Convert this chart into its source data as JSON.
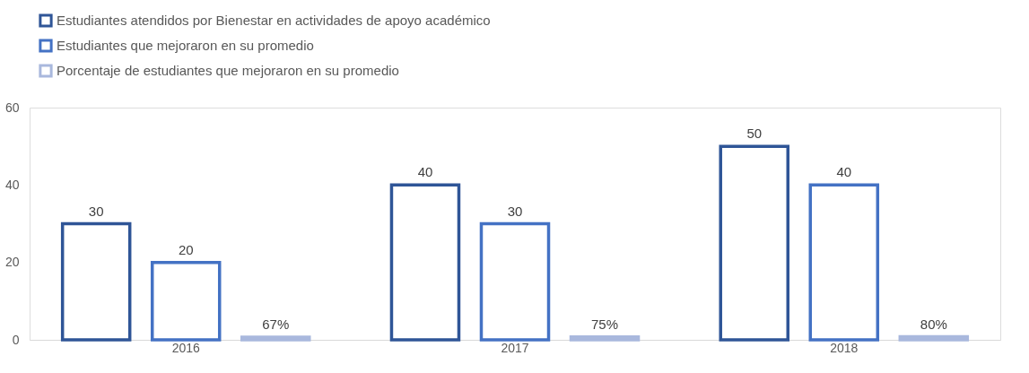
{
  "chart_data": {
    "type": "bar",
    "categories": [
      "2016",
      "2017",
      "2018"
    ],
    "series": [
      {
        "name": "Estudiantes atendidos por Bienestar en actividades de apoyo académico",
        "color": "#2f5597",
        "values": [
          30,
          40,
          50
        ],
        "value_labels": [
          "30",
          "40",
          "50"
        ]
      },
      {
        "name": "Estudiantes que mejoraron en su promedio",
        "color": "#4472c4",
        "values": [
          20,
          30,
          40
        ],
        "value_labels": [
          "20",
          "30",
          "40"
        ]
      },
      {
        "name": "Porcentaje de estudiantes que mejoraron en su promedio",
        "color": "#a9b8dd",
        "values": [
          0.67,
          0.75,
          0.8
        ],
        "value_labels": [
          "67%",
          "75%",
          "80%"
        ]
      }
    ],
    "ylim": [
      0,
      60
    ],
    "yticks": [
      0,
      20,
      40,
      60
    ],
    "grid": false,
    "legend": "top"
  }
}
